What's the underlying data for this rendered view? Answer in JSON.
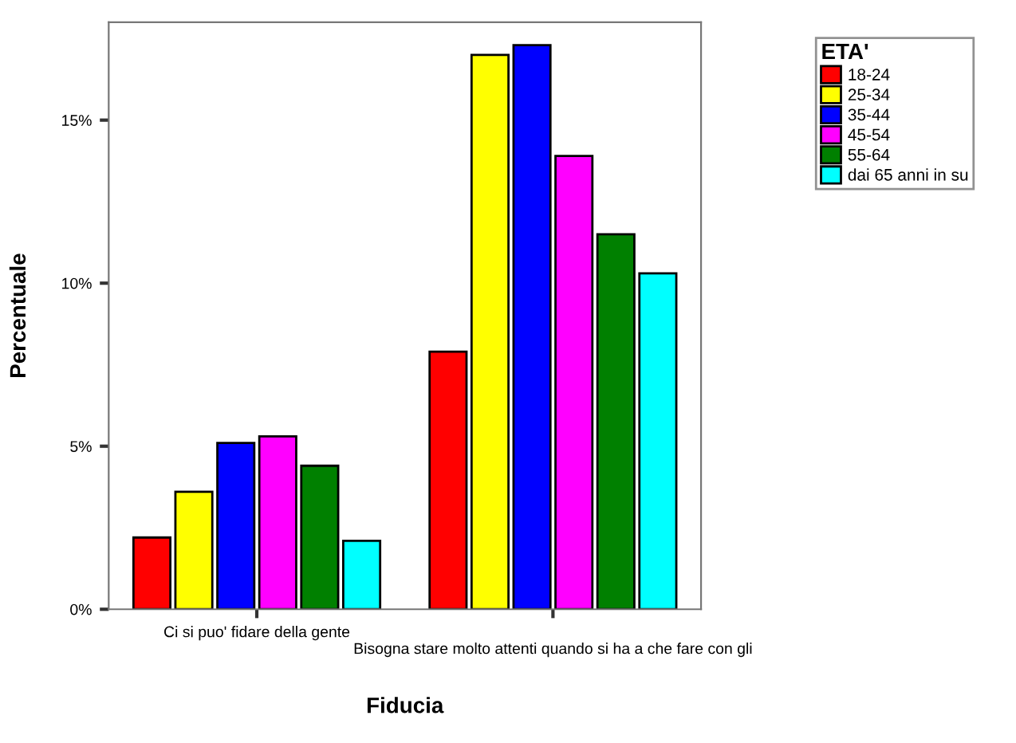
{
  "chart_data": {
    "type": "bar",
    "xlabel": "Fiducia",
    "ylabel": "Percentuale",
    "legend_title": "ETA'",
    "categories": [
      "Ci si puo' fidare della gente",
      "Bisogna stare molto attenti quando si ha a che fare con gli"
    ],
    "series": [
      {
        "name": "18-24",
        "color": "#ff0000",
        "values": [
          2.2,
          7.9
        ]
      },
      {
        "name": "25-34",
        "color": "#ffff00",
        "values": [
          3.6,
          17.0
        ]
      },
      {
        "name": "35-44",
        "color": "#0000ff",
        "values": [
          5.1,
          17.3
        ]
      },
      {
        "name": "45-54",
        "color": "#ff00ff",
        "values": [
          5.3,
          13.9
        ]
      },
      {
        "name": "55-64",
        "color": "#008000",
        "values": [
          4.4,
          11.5
        ]
      },
      {
        "name": "dai 65 anni in su",
        "color": "#00ffff",
        "values": [
          2.1,
          10.3
        ]
      }
    ],
    "ylim": [
      0,
      18
    ],
    "yticks": [
      {
        "value": 0,
        "label": "0%"
      },
      {
        "value": 5,
        "label": "5%"
      },
      {
        "value": 10,
        "label": "10%"
      },
      {
        "value": 15,
        "label": "15%"
      }
    ],
    "grid": false,
    "legend": "top right"
  }
}
